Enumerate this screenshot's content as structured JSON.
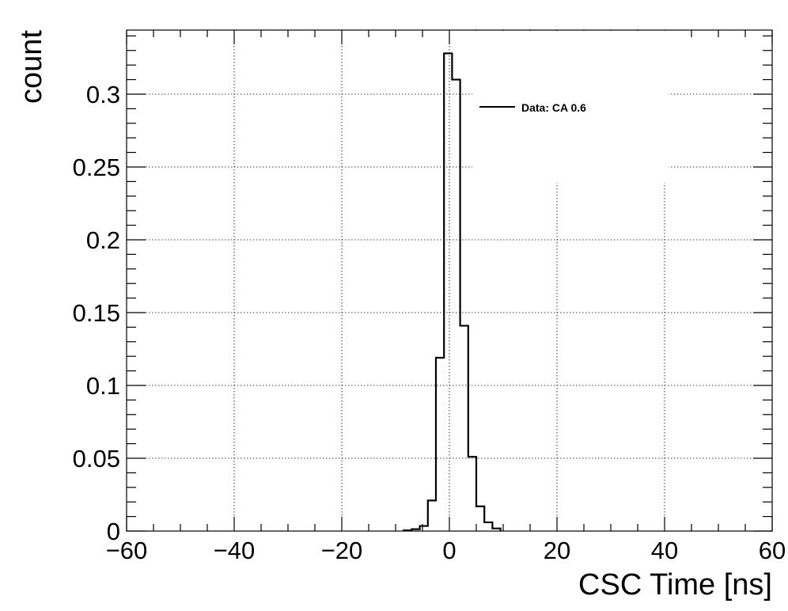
{
  "chart_data": {
    "type": "histogram",
    "xlabel": "CSC Time [ns]",
    "ylabel": "count",
    "xlim": [
      -60,
      60
    ],
    "ylim": [
      0,
      0.344
    ],
    "xticks": [
      -60,
      -40,
      -20,
      0,
      20,
      40,
      60
    ],
    "xtick_labels": [
      "−60",
      "−40",
      "−20",
      "0",
      "20",
      "40",
      "60"
    ],
    "yticks": [
      0,
      0.05,
      0.1,
      0.15,
      0.2,
      0.25,
      0.3
    ],
    "ytick_labels": [
      "0",
      "0.05",
      "0.1",
      "0.15",
      "0.2",
      "0.25",
      "0.3"
    ],
    "grid": true,
    "legend": {
      "position": "top-right",
      "entries": [
        "Data: CA 0.6"
      ]
    },
    "series": [
      {
        "name": "Data: CA 0.6",
        "color": "#000000",
        "bin_edges": [
          -8.5,
          -7,
          -5.5,
          -4,
          -2.5,
          -1,
          0.5,
          2,
          3.5,
          5,
          6.5,
          8,
          9.5
        ],
        "values": [
          0.0005,
          0.0013,
          0.0035,
          0.021,
          0.119,
          0.328,
          0.31,
          0.141,
          0.051,
          0.017,
          0.006,
          0.0018
        ]
      }
    ]
  }
}
